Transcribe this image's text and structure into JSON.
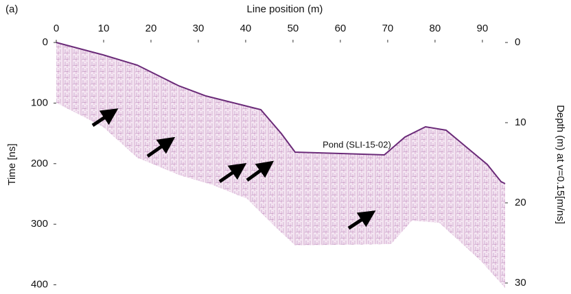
{
  "chart_data": {
    "type": "radargram",
    "panel_label": "(a)",
    "xlabel": "Line position (m)",
    "ylabel": "Time [ns]",
    "y2label": "Depth (m) at v=0.15[m/ns]",
    "annotation": "Pond (SLI-15-02)",
    "xlim": [
      0,
      94.8
    ],
    "xticks": [
      0,
      10,
      20,
      30,
      40,
      50,
      60,
      70,
      80,
      90
    ],
    "ylim": [
      0,
      405
    ],
    "yticks": [
      0,
      100,
      200,
      300,
      400
    ],
    "y2lim": [
      0,
      30.6
    ],
    "y2ticks": [
      0,
      10,
      20,
      30
    ],
    "grid": false
  }
}
